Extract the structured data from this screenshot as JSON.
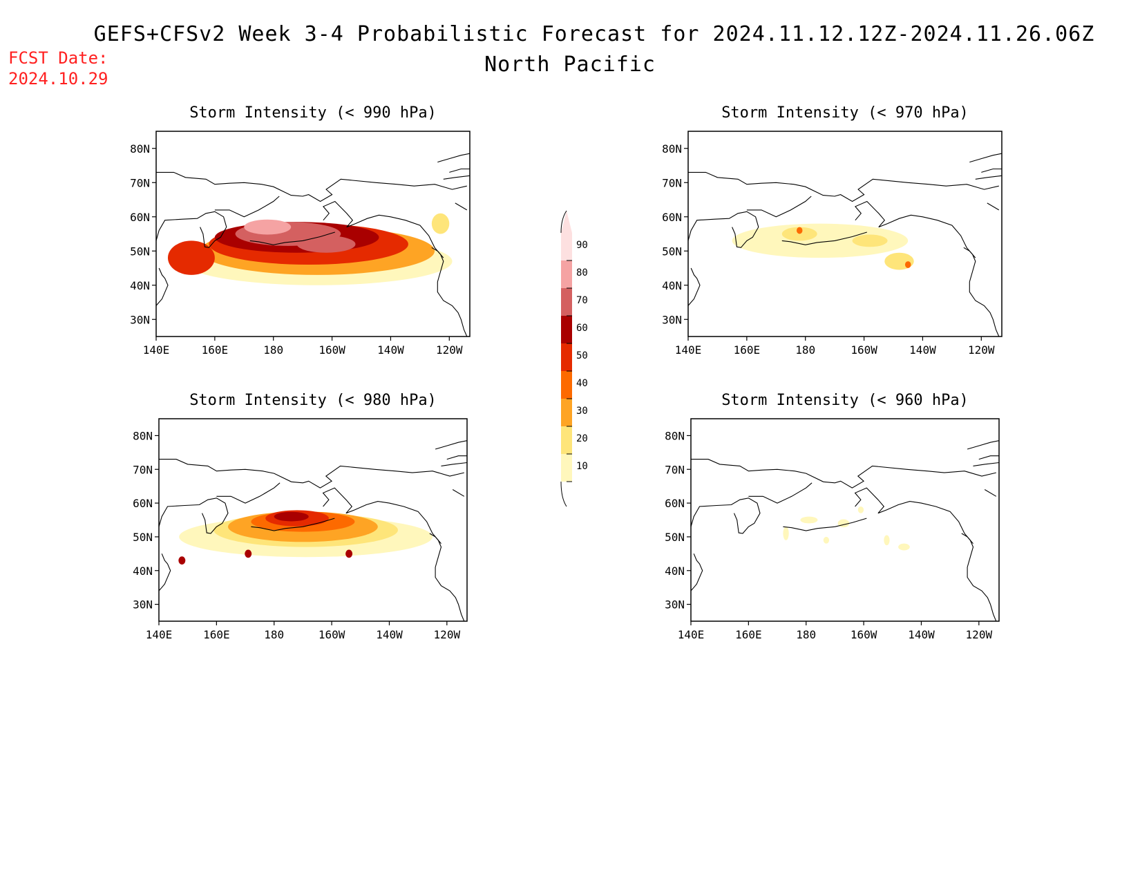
{
  "header": {
    "title": "GEFS+CFSv2 Week 3-4 Probabilistic Forecast for 2024.11.12.12Z-2024.11.26.06Z",
    "subtitle": "North Pacific",
    "fcst_label": "FCST Date:",
    "fcst_date": "2024.10.29"
  },
  "colors": {
    "fcst_text": "#ff2020",
    "levels": [
      "#fff7bc",
      "#fee57a",
      "#fea424",
      "#fd6a00",
      "#e52a00",
      "#a90000",
      "#d46060",
      "#f5a3a3",
      "#fde0e0"
    ]
  },
  "chart_data": {
    "type": "heatmap",
    "lon_ticks": [
      "140E",
      "160E",
      "180",
      "160W",
      "140W",
      "120W"
    ],
    "lon_values": [
      140,
      160,
      180,
      200,
      220,
      240
    ],
    "lat_ticks": [
      "80N",
      "70N",
      "60N",
      "50N",
      "40N",
      "30N"
    ],
    "lat_values": [
      80,
      70,
      60,
      50,
      40,
      30
    ],
    "lon_range": [
      140,
      247
    ],
    "lat_range": [
      25,
      85
    ],
    "colorbar": {
      "levels": [
        10,
        20,
        30,
        40,
        50,
        60,
        70,
        80,
        90
      ],
      "labels": [
        "90",
        "80",
        "70",
        "60",
        "50",
        "40",
        "30",
        "20",
        "10"
      ]
    },
    "panels": [
      {
        "title": "Storm Intensity (< 990 hPa)",
        "blobs": [
          {
            "lon": 195,
            "lat": 47,
            "rx": 46,
            "ry": 7,
            "level": 10
          },
          {
            "lon": 195,
            "lat": 50,
            "rx": 40,
            "ry": 7,
            "level": 30
          },
          {
            "lon": 192,
            "lat": 52,
            "rx": 34,
            "ry": 6,
            "level": 50
          },
          {
            "lon": 188,
            "lat": 54,
            "rx": 28,
            "ry": 4.5,
            "level": 60
          },
          {
            "lon": 185,
            "lat": 55,
            "rx": 18,
            "ry": 3.5,
            "level": 70
          },
          {
            "lon": 178,
            "lat": 57,
            "rx": 8,
            "ry": 2.2,
            "level": 80
          },
          {
            "lon": 198,
            "lat": 52,
            "rx": 10,
            "ry": 2.5,
            "level": 70
          },
          {
            "lon": 152,
            "lat": 48,
            "rx": 8,
            "ry": 5,
            "level": 50
          },
          {
            "lon": 237,
            "lat": 58,
            "rx": 3,
            "ry": 3,
            "level": 20
          }
        ]
      },
      {
        "title": "Storm Intensity (< 970 hPa)",
        "blobs": [
          {
            "lon": 185,
            "lat": 53,
            "rx": 30,
            "ry": 5,
            "level": 10
          },
          {
            "lon": 212,
            "lat": 47,
            "rx": 5,
            "ry": 2.5,
            "level": 20
          },
          {
            "lon": 178,
            "lat": 55,
            "rx": 6,
            "ry": 2,
            "level": 20
          },
          {
            "lon": 202,
            "lat": 53,
            "rx": 6,
            "ry": 1.8,
            "level": 20
          },
          {
            "lon": 178,
            "lat": 56,
            "rx": 1,
            "ry": 1,
            "level": 40
          },
          {
            "lon": 215,
            "lat": 46,
            "rx": 1,
            "ry": 1,
            "level": 40
          }
        ]
      },
      {
        "title": "Storm Intensity (< 980 hPa)",
        "blobs": [
          {
            "lon": 191,
            "lat": 50,
            "rx": 44,
            "ry": 6,
            "level": 10
          },
          {
            "lon": 191,
            "lat": 52,
            "rx": 32,
            "ry": 5,
            "level": 20
          },
          {
            "lon": 190,
            "lat": 53,
            "rx": 26,
            "ry": 4.5,
            "level": 30
          },
          {
            "lon": 190,
            "lat": 54.5,
            "rx": 18,
            "ry": 3,
            "level": 40
          },
          {
            "lon": 188,
            "lat": 55.5,
            "rx": 11,
            "ry": 2.4,
            "level": 50
          },
          {
            "lon": 186,
            "lat": 56,
            "rx": 6,
            "ry": 1.4,
            "level": 60
          },
          {
            "lon": 171,
            "lat": 45,
            "rx": 1.2,
            "ry": 1.2,
            "level": 60
          },
          {
            "lon": 206,
            "lat": 45,
            "rx": 1.2,
            "ry": 1.2,
            "level": 60
          },
          {
            "lon": 148,
            "lat": 43,
            "rx": 1.2,
            "ry": 1.2,
            "level": 60
          }
        ]
      },
      {
        "title": "Storm Intensity (< 960 hPa)",
        "blobs": [
          {
            "lon": 181,
            "lat": 55,
            "rx": 3,
            "ry": 1,
            "level": 10
          },
          {
            "lon": 193,
            "lat": 54,
            "rx": 2,
            "ry": 1.2,
            "level": 10
          },
          {
            "lon": 173,
            "lat": 51,
            "rx": 1,
            "ry": 2,
            "level": 10
          },
          {
            "lon": 187,
            "lat": 49,
            "rx": 1,
            "ry": 1,
            "level": 10
          },
          {
            "lon": 208,
            "lat": 49,
            "rx": 1,
            "ry": 1.5,
            "level": 10
          },
          {
            "lon": 214,
            "lat": 47,
            "rx": 2,
            "ry": 1,
            "level": 10
          },
          {
            "lon": 199,
            "lat": 58,
            "rx": 1,
            "ry": 1,
            "level": 10
          }
        ]
      }
    ]
  }
}
